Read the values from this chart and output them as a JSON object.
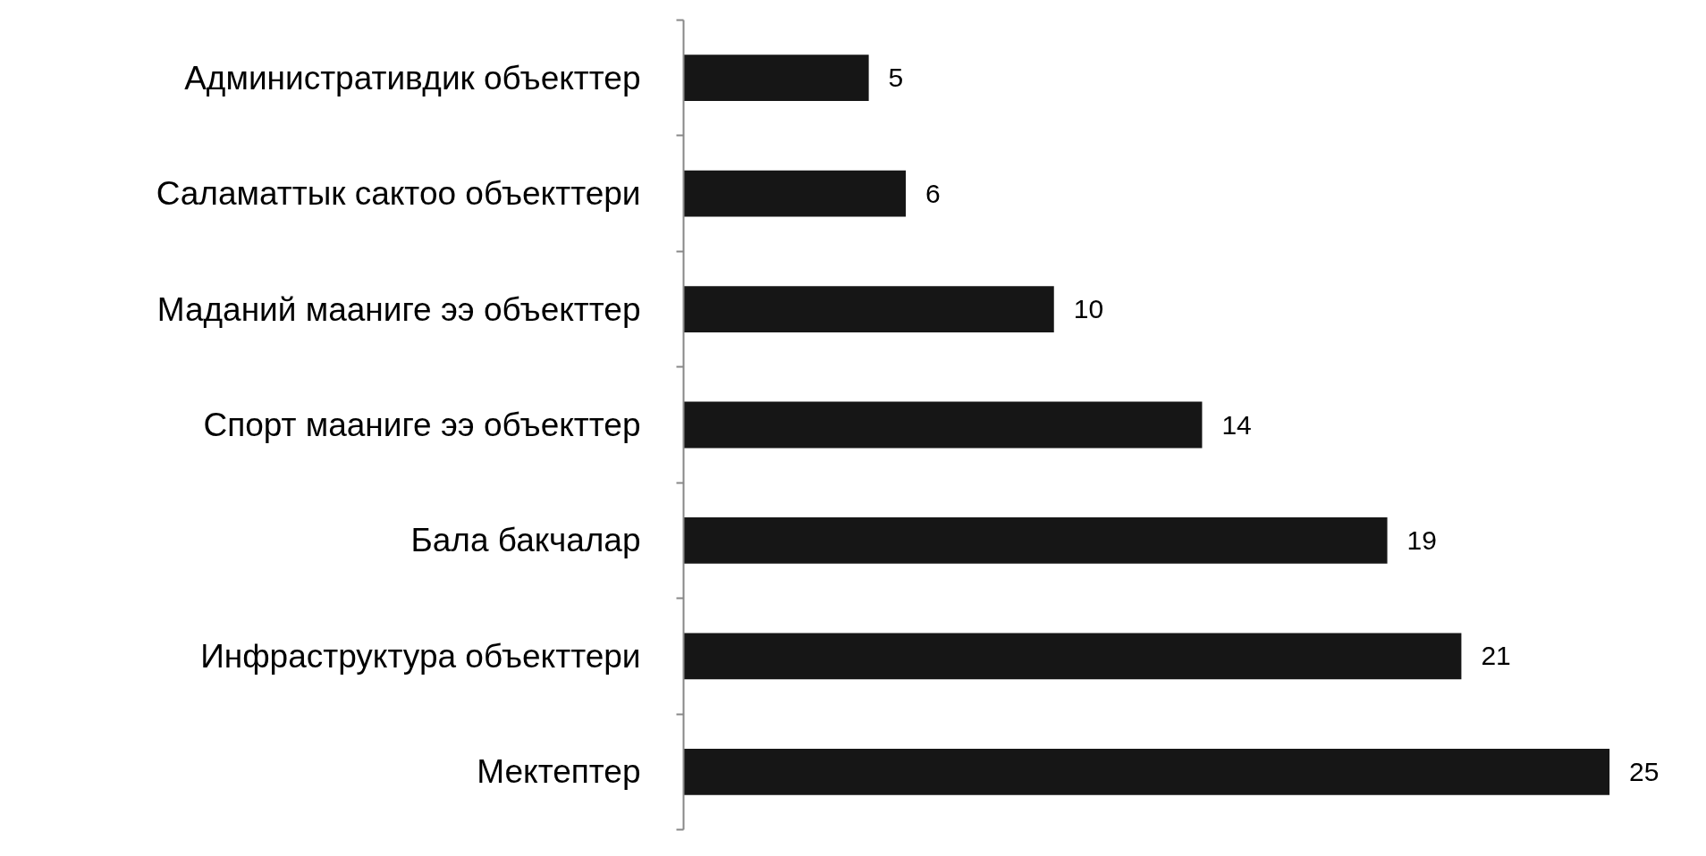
{
  "chart_data": {
    "type": "bar",
    "orientation": "horizontal",
    "categories": [
      "Административдик объекттер",
      "Саламаттык сактоо объекттери",
      "Маданий мааниге ээ объекттер",
      "Спорт мааниге ээ объекттер",
      "Бала бакчалар",
      "Инфраструктура объекттери",
      "Мектептер"
    ],
    "values": [
      5,
      6,
      10,
      14,
      19,
      21,
      25
    ],
    "color": "#161616",
    "data_labels": true,
    "grid": false
  }
}
